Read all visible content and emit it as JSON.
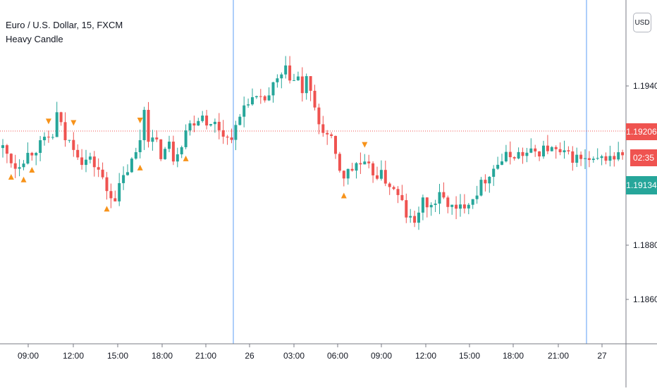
{
  "legend": {
    "symbol": "Euro / U.S. Dollar, 15, FXCM",
    "indicator": "Heavy Candle"
  },
  "currency_button": "USD",
  "colors": {
    "up": "#26a69a",
    "down": "#ef5350",
    "marker": "#f7931a",
    "price_line": "#ef5350",
    "separator": "#5b9cf6",
    "axis_text": "#131722"
  },
  "chart_data": {
    "type": "candlestick",
    "title": "Euro / U.S. Dollar, 15, FXCM",
    "indicator": "Heavy Candle",
    "x_ticks": [
      "09:00",
      "12:00",
      "15:00",
      "18:00",
      "21:00",
      "26",
      "03:00",
      "06:00",
      "09:00",
      "12:00",
      "15:00",
      "18:00",
      "21:00",
      "27"
    ],
    "y_ticks": [
      "1.19400",
      "1.18800",
      "1.18600"
    ],
    "ylim": [
      1.1852,
      1.1963
    ],
    "price_labels": [
      {
        "role": "last_close",
        "text": "1.19206",
        "value": 1.19206,
        "color": "#ef5350"
      },
      {
        "role": "countdown",
        "text": "02:35",
        "value": 1.19206,
        "color": "#ef5350"
      },
      {
        "role": "current_bid",
        "text": "1.19134",
        "value": 1.19134,
        "color": "#26a69a"
      }
    ],
    "session_breaks": [
      "26",
      "27"
    ],
    "path_points": [
      [
        0,
        1.1916
      ],
      [
        3,
        1.191
      ],
      [
        6,
        1.1914
      ],
      [
        9,
        1.1917
      ],
      [
        12,
        1.192
      ],
      [
        13,
        1.1927
      ],
      [
        15,
        1.1919
      ],
      [
        17,
        1.1917
      ],
      [
        19,
        1.1912
      ],
      [
        21,
        1.1912
      ],
      [
        23,
        1.1909
      ],
      [
        25,
        1.1902
      ],
      [
        27,
        1.19
      ],
      [
        28,
        1.1903
      ],
      [
        30,
        1.1909
      ],
      [
        32,
        1.1914
      ],
      [
        33,
        1.1919
      ],
      [
        34,
        1.1929
      ],
      [
        35,
        1.192
      ],
      [
        37,
        1.1917
      ],
      [
        38,
        1.1914
      ],
      [
        40,
        1.1917
      ],
      [
        41,
        1.1913
      ],
      [
        43,
        1.1918
      ],
      [
        44,
        1.1922
      ],
      [
        46,
        1.1925
      ],
      [
        48,
        1.1927
      ],
      [
        50,
        1.1923
      ],
      [
        51,
        1.1924
      ],
      [
        53,
        1.1921
      ],
      [
        54,
        1.1919
      ],
      [
        56,
        1.1922
      ],
      [
        58,
        1.193
      ],
      [
        59,
        1.1932
      ],
      [
        62,
        1.1931
      ],
      [
        64,
        1.1933
      ],
      [
        65,
        1.1936
      ],
      [
        68,
        1.1941
      ],
      [
        70,
        1.1938
      ],
      [
        71,
        1.1939
      ],
      [
        72,
        1.1933
      ],
      [
        73,
        1.194
      ],
      [
        74,
        1.1933
      ],
      [
        75,
        1.1928
      ],
      [
        76,
        1.1924
      ],
      [
        79,
        1.1918
      ],
      [
        80,
        1.1913
      ],
      [
        81,
        1.1909
      ],
      [
        82,
        1.1907
      ],
      [
        84,
        1.1909
      ],
      [
        85,
        1.1911
      ],
      [
        87,
        1.191
      ],
      [
        89,
        1.1908
      ],
      [
        91,
        1.1907
      ],
      [
        93,
        1.1904
      ],
      [
        94,
        1.1902
      ],
      [
        96,
        1.1898
      ],
      [
        97,
        1.1894
      ],
      [
        99,
        1.1891
      ],
      [
        100,
        1.1896
      ],
      [
        101,
        1.1898
      ],
      [
        103,
        1.1897
      ],
      [
        105,
        1.19
      ],
      [
        107,
        1.1898
      ],
      [
        109,
        1.1895
      ],
      [
        111,
        1.1898
      ],
      [
        113,
        1.19
      ],
      [
        115,
        1.1904
      ],
      [
        117,
        1.1908
      ],
      [
        119,
        1.1911
      ],
      [
        121,
        1.1913
      ],
      [
        123,
        1.1914
      ],
      [
        126,
        1.1914
      ],
      [
        129,
        1.1915
      ],
      [
        131,
        1.1916
      ],
      [
        134,
        1.1914
      ],
      [
        137,
        1.1913
      ],
      [
        140,
        1.1912
      ],
      [
        142,
        1.1911
      ],
      [
        145,
        1.1913
      ],
      [
        147,
        1.1913
      ],
      [
        149,
        1.1914
      ]
    ],
    "signals": [
      {
        "bar": 2,
        "direction": "up"
      },
      {
        "bar": 5,
        "direction": "up"
      },
      {
        "bar": 7,
        "direction": "up"
      },
      {
        "bar": 11,
        "direction": "down"
      },
      {
        "bar": 17,
        "direction": "down"
      },
      {
        "bar": 25,
        "direction": "up"
      },
      {
        "bar": 33,
        "direction": "down"
      },
      {
        "bar": 33,
        "direction": "up"
      },
      {
        "bar": 44,
        "direction": "up"
      },
      {
        "bar": 82,
        "direction": "up"
      },
      {
        "bar": 87,
        "direction": "down"
      }
    ]
  }
}
